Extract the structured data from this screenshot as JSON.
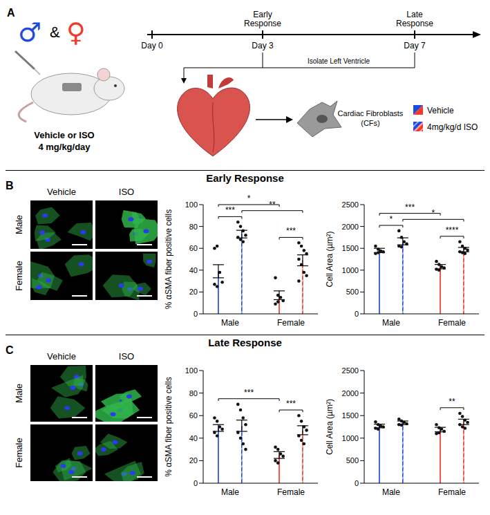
{
  "figure": {
    "panel_a": {
      "letter": "A",
      "sexes": [
        "♂",
        "&",
        "♀"
      ],
      "treatment": "Vehicle or ISO",
      "dose": "4 mg/kg/day",
      "timeline": [
        {
          "day": "Day 0"
        },
        {
          "day": "Day 3",
          "event": "Early Response"
        },
        {
          "day": "Day 7",
          "event": "Late Response"
        }
      ],
      "procedure": "Isolate Left Ventricle",
      "cells": "Cardiac Fibroblasts (CFs)"
    },
    "panel_b": {
      "letter": "B",
      "title": "Early Response",
      "micrograph_columns": [
        "Vehicle",
        "ISO"
      ],
      "micrograph_rows": [
        "Male",
        "Female"
      ]
    },
    "panel_c": {
      "letter": "C",
      "title": "Late Response",
      "micrograph_columns": [
        "Vehicle",
        "ISO"
      ],
      "micrograph_rows": [
        "Male",
        "Female"
      ]
    }
  },
  "chart_data": [
    {
      "type": "bar",
      "y_label": "% αSMA fiber positive cells",
      "categories": [
        "Male",
        "Female"
      ],
      "ylim": [
        0,
        100
      ],
      "yticks": [
        0,
        20,
        40,
        60,
        80,
        100
      ],
      "series": [
        {
          "name": "Vehicle",
          "colors": [
            "#1f4ae0",
            "#f03a2a"
          ],
          "line_style": "solid",
          "values": [
            39,
            17
          ],
          "errors": [
            6,
            4
          ],
          "points": [
            [
              60,
              62,
              38,
              29,
              27,
              25
            ],
            [
              33,
              17,
              15,
              12,
              9,
              11
            ]
          ]
        },
        {
          "name": "4mg/kg/d ISO",
          "colors": [
            "#1f4ae0",
            "#f03a2a"
          ],
          "line_style": "hatched",
          "values": [
            73,
            49
          ],
          "errors": [
            3.5,
            5
          ],
          "points": [
            [
              84,
              80,
              76,
              72,
              70,
              68,
              66
            ],
            [
              65,
              62,
              58,
              55,
              50,
              45,
              38,
              35,
              30
            ]
          ]
        }
      ],
      "significance": [
        {
          "between": [
            [
              "Male",
              "Vehicle"
            ],
            [
              "Male",
              "4mg/kg/d ISO"
            ]
          ],
          "label": "***"
        },
        {
          "between": [
            [
              "Female",
              "Vehicle"
            ],
            [
              "Female",
              "4mg/kg/d ISO"
            ]
          ],
          "label": "***"
        },
        {
          "between": [
            [
              "Male",
              "4mg/kg/d ISO"
            ],
            [
              "Female",
              "4mg/kg/d ISO"
            ]
          ],
          "label": "**"
        },
        {
          "between": [
            [
              "Male",
              "Vehicle"
            ],
            [
              "Female",
              "Vehicle"
            ]
          ],
          "label": "*"
        }
      ]
    },
    {
      "type": "bar",
      "y_label": "Cell Area (µm²)",
      "categories": [
        "Male",
        "Female"
      ],
      "ylim": [
        0,
        2500
      ],
      "yticks": [
        0,
        500,
        1000,
        1500,
        2000,
        2500
      ],
      "series": [
        {
          "name": "Vehicle",
          "colors": [
            "#1f4ae0",
            "#f03a2a"
          ],
          "line_style": "solid",
          "values": [
            1450,
            1080
          ],
          "errors": [
            50,
            50
          ],
          "points": [
            [
              1550,
              1480,
              1440,
              1420,
              1380,
              1400
            ],
            [
              1200,
              1130,
              1080,
              1050,
              1020,
              1000
            ]
          ]
        },
        {
          "name": "4mg/kg/d ISO",
          "colors": [
            "#1f4ae0",
            "#f03a2a"
          ],
          "line_style": "hatched",
          "values": [
            1660,
            1470
          ],
          "errors": [
            80,
            50
          ],
          "points": [
            [
              1900,
              1750,
              1650,
              1600,
              1550,
              1530
            ],
            [
              1650,
              1550,
              1500,
              1460,
              1420,
              1400,
              1380
            ]
          ]
        }
      ],
      "significance": [
        {
          "between": [
            [
              "Male",
              "Vehicle"
            ],
            [
              "Male",
              "4mg/kg/d ISO"
            ]
          ],
          "label": "*"
        },
        {
          "between": [
            [
              "Female",
              "Vehicle"
            ],
            [
              "Female",
              "4mg/kg/d ISO"
            ]
          ],
          "label": "****"
        },
        {
          "between": [
            [
              "Male",
              "4mg/kg/d ISO"
            ],
            [
              "Female",
              "4mg/kg/d ISO"
            ]
          ],
          "label": "*"
        },
        {
          "between": [
            [
              "Male",
              "Vehicle"
            ],
            [
              "Female",
              "Vehicle"
            ]
          ],
          "label": "***"
        }
      ]
    },
    {
      "type": "bar",
      "y_label": "% αSMA fiber positive cells",
      "categories": [
        "Male",
        "Female"
      ],
      "ylim": [
        0,
        100
      ],
      "yticks": [
        0,
        20,
        40,
        60,
        80,
        100
      ],
      "series": [
        {
          "name": "Vehicle",
          "colors": [
            "#1f4ae0",
            "#f03a2a"
          ],
          "line_style": "solid",
          "values": [
            49,
            25
          ],
          "errors": [
            3,
            3
          ],
          "points": [
            [
              58,
              55,
              50,
              48,
              45,
              42
            ],
            [
              32,
              30,
              26,
              24,
              20,
              18
            ]
          ]
        },
        {
          "name": "4mg/kg/d ISO",
          "colors": [
            "#1f4ae0",
            "#f03a2a"
          ],
          "line_style": "hatched",
          "values": [
            51,
            47
          ],
          "errors": [
            5,
            4
          ],
          "points": [
            [
              70,
              65,
              58,
              52,
              45,
              40,
              35,
              30
            ],
            [
              60,
              55,
              50,
              47,
              42,
              38,
              35
            ]
          ]
        }
      ],
      "significance": [
        {
          "between": [
            [
              "Female",
              "Vehicle"
            ],
            [
              "Female",
              "4mg/kg/d ISO"
            ]
          ],
          "label": "***"
        },
        {
          "between": [
            [
              "Male",
              "Vehicle"
            ],
            [
              "Female",
              "Vehicle"
            ]
          ],
          "label": "***"
        }
      ]
    },
    {
      "type": "bar",
      "y_label": "Cell Area (µm²)",
      "categories": [
        "Male",
        "Female"
      ],
      "ylim": [
        0,
        2500
      ],
      "yticks": [
        0,
        500,
        1000,
        1500,
        2000,
        2500
      ],
      "series": [
        {
          "name": "Vehicle",
          "colors": [
            "#1f4ae0",
            "#f03a2a"
          ],
          "line_style": "solid",
          "values": [
            1270,
            1190
          ],
          "errors": [
            40,
            50
          ],
          "points": [
            [
              1360,
              1300,
              1270,
              1250,
              1220,
              1200
            ],
            [
              1300,
              1230,
              1200,
              1150,
              1100,
              1120
            ]
          ]
        },
        {
          "name": "4mg/kg/d ISO",
          "colors": [
            "#1f4ae0",
            "#f03a2a"
          ],
          "line_style": "hatched",
          "values": [
            1340,
            1360
          ],
          "errors": [
            40,
            60
          ],
          "points": [
            [
              1420,
              1380,
              1350,
              1320,
              1300,
              1290
            ],
            [
              1550,
              1480,
              1400,
              1350,
              1300,
              1250,
              1220
            ]
          ]
        }
      ],
      "significance": [
        {
          "between": [
            [
              "Female",
              "Vehicle"
            ],
            [
              "Female",
              "4mg/kg/d ISO"
            ]
          ],
          "label": "**"
        }
      ]
    }
  ]
}
